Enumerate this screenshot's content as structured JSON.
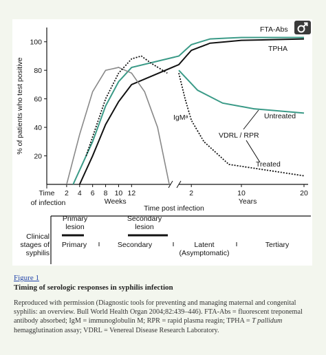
{
  "chart_data": {
    "type": "line",
    "ylabel": "% of patients who test positive",
    "ylim": [
      0,
      110
    ],
    "yticks": [
      20,
      40,
      60,
      80,
      100
    ],
    "x_weeks_ticks": [
      "2",
      "4",
      "6",
      "8",
      "10",
      "12"
    ],
    "x_weeks_label": "Weeks",
    "x_years_ticks": [
      "2",
      "10",
      "20"
    ],
    "x_years_label": "Years",
    "x_start_label_line1": "Time",
    "x_start_label_line2": "of infection",
    "x_middle_label": "Time post infection",
    "series": [
      {
        "name": "FTA-Abs",
        "color": "#3a9a87",
        "weeks": [
          [
            3,
            0
          ],
          [
            6,
            30
          ],
          [
            8,
            55
          ],
          [
            10,
            72
          ],
          [
            12,
            82
          ]
        ],
        "years": [
          [
            0,
            90
          ],
          [
            2,
            98
          ],
          [
            5,
            102
          ],
          [
            10,
            103
          ],
          [
            20,
            103
          ]
        ]
      },
      {
        "name": "TPHA",
        "color": "#111111",
        "weeks": [
          [
            4,
            0
          ],
          [
            6,
            20
          ],
          [
            8,
            42
          ],
          [
            10,
            58
          ],
          [
            12,
            70
          ]
        ],
        "years": [
          [
            0,
            84
          ],
          [
            2,
            94
          ],
          [
            5,
            99
          ],
          [
            10,
            101
          ],
          [
            20,
            102
          ]
        ]
      },
      {
        "name": "IgMᵃ",
        "color": "#888888",
        "weeks": [
          [
            2,
            0
          ],
          [
            4,
            35
          ],
          [
            6,
            65
          ],
          [
            8,
            80
          ],
          [
            10,
            82
          ],
          [
            12,
            78
          ],
          [
            14,
            65
          ],
          [
            16,
            40
          ],
          [
            17.8,
            0
          ]
        ],
        "years": []
      },
      {
        "name": "VDRL / RPR",
        "color": "#111111",
        "weeks": [
          [
            5,
            20
          ],
          [
            8,
            60
          ],
          [
            10,
            78
          ],
          [
            12,
            88
          ],
          [
            13.5,
            90
          ],
          [
            15,
            85
          ],
          [
            17.5,
            78
          ]
        ],
        "years": []
      },
      {
        "name": "Untreated",
        "color": "#3a9a87",
        "weeks": [],
        "years": [
          [
            0,
            80
          ],
          [
            3,
            66
          ],
          [
            7,
            57
          ],
          [
            12,
            53
          ],
          [
            20,
            50
          ]
        ]
      },
      {
        "name": "Treated",
        "color": "#111111",
        "weeks": [],
        "years": [
          [
            0,
            78
          ],
          [
            1,
            60
          ],
          [
            2,
            45
          ],
          [
            4,
            30
          ],
          [
            8,
            14
          ],
          [
            14,
            10
          ],
          [
            20,
            6
          ]
        ]
      }
    ],
    "legend": "inline labels"
  },
  "stages": {
    "title": "Clinical\nstages of\nsyphilis",
    "primary_lesion": "Primary\nlesion",
    "secondary_lesion": "Secondary\nlesion",
    "items": [
      "Primary",
      "Secondary",
      "Latent\n(Asymptomatic)",
      "Tertiary"
    ]
  },
  "caption": {
    "figure_link": "Figure 1",
    "title": "Timing of serologic responses in syphilis infection",
    "body": "Reproduced with permission (Diagnostic tools for preventing and managing maternal and congenital syphilis: an overview. Bull World Health Organ 2004;82:439–446). FTA-Abs = fluorescent treponemal antibody absorbed; IgM = immunoglobulin M; RPR = rapid plasma reagin; TPHA = ",
    "body_italic": "T pallidum",
    "body_end": " hemagglutination assay; VDRL = Venereal Disease Research Laboratory."
  },
  "icon": "male-symbol-icon"
}
